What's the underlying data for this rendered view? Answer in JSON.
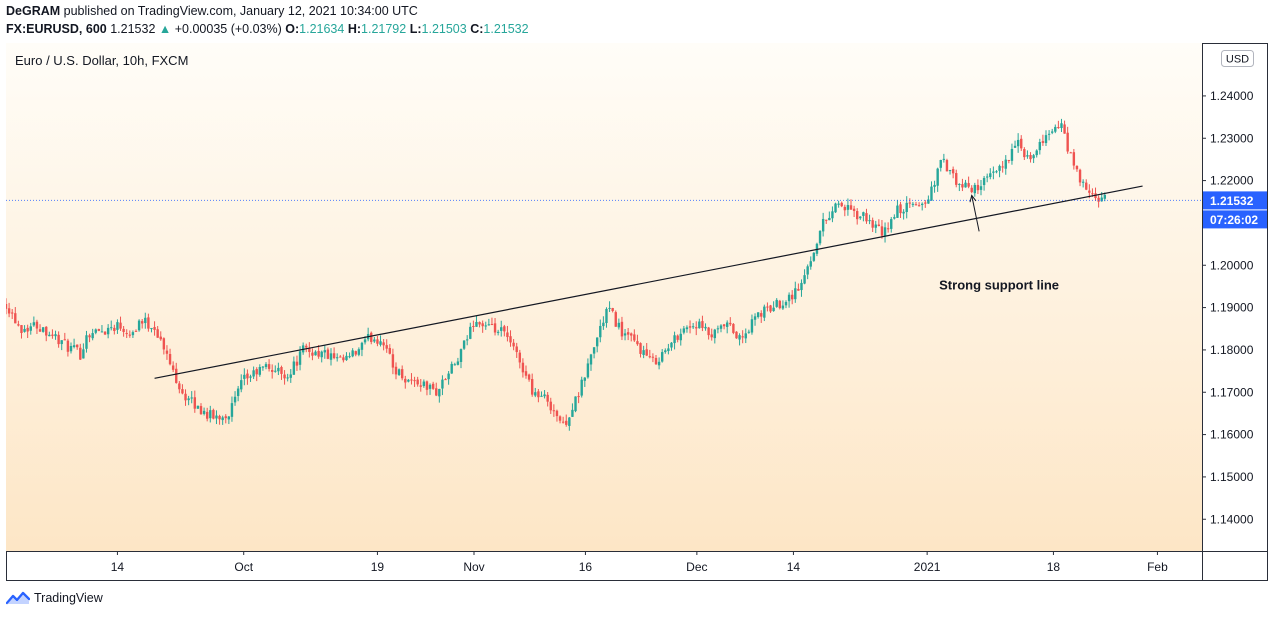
{
  "header": {
    "author": "DeGRAM",
    "published_text": "published on TradingView.com, January 12, 2021 10:34:00 UTC",
    "symbol": "FX:EURUSD, 600",
    "last": "1.21532",
    "change_arrow": "▲",
    "change": "+0.00035 (+0.03%)",
    "o_label": "O:",
    "o_value": "1.21634",
    "h_label": "H:",
    "h_value": "1.21792",
    "l_label": "L:",
    "l_value": "1.21503",
    "c_label": "C:",
    "c_value": "1.21532"
  },
  "footer": {
    "brand": "TradingView"
  },
  "colors": {
    "up": "#26a69a",
    "down": "#ef5350",
    "price_label_bg": "#2962ff",
    "bg_top": "#fffdf8",
    "bg_bottom": "#fde6c6"
  },
  "chart_data": {
    "type": "candlestick",
    "title": "Euro / U.S. Dollar, 10h, FXCM",
    "currency_label": "USD",
    "ylim": [
      1.1325,
      1.2525
    ],
    "y_ticks": [
      1.14,
      1.15,
      1.16,
      1.17,
      1.18,
      1.19,
      1.2,
      1.21,
      1.22,
      1.23,
      1.24
    ],
    "y_tick_labels": [
      "1.14000",
      "1.15000",
      "1.16000",
      "1.17000",
      "1.18000",
      "1.19000",
      "1.20000",
      "1.21000",
      "1.22000",
      "1.23000",
      "1.24000"
    ],
    "x_range": [
      "2020-08-30",
      "2021-02-07"
    ],
    "x_ticks": [
      {
        "date": "2020-09-14",
        "label": "14"
      },
      {
        "date": "2020-10-01",
        "label": "Oct"
      },
      {
        "date": "2020-10-19",
        "label": "19"
      },
      {
        "date": "2020-11-01",
        "label": "Nov"
      },
      {
        "date": "2020-11-16",
        "label": "16"
      },
      {
        "date": "2020-12-01",
        "label": "Dec"
      },
      {
        "date": "2020-12-14",
        "label": "14"
      },
      {
        "date": "2021-01-01",
        "label": "2021"
      },
      {
        "date": "2021-01-18",
        "label": "18"
      },
      {
        "date": "2021-02-01",
        "label": "Feb"
      }
    ],
    "last_price": 1.21532,
    "last_price_label": "1.21532",
    "countdown_label": "07:26:02",
    "close_path": [
      [
        "2020-08-30",
        1.191
      ],
      [
        "2020-09-01",
        1.185
      ],
      [
        "2020-09-03",
        1.186
      ],
      [
        "2020-09-05",
        1.184
      ],
      [
        "2020-09-07",
        1.181
      ],
      [
        "2020-09-09",
        1.179
      ],
      [
        "2020-09-10",
        1.184
      ],
      [
        "2020-09-12",
        1.1845
      ],
      [
        "2020-09-14",
        1.186
      ],
      [
        "2020-09-16",
        1.184
      ],
      [
        "2020-09-17",
        1.187
      ],
      [
        "2020-09-19",
        1.1855
      ],
      [
        "2020-09-21",
        1.177
      ],
      [
        "2020-09-23",
        1.169
      ],
      [
        "2020-09-25",
        1.166
      ],
      [
        "2020-09-27",
        1.164
      ],
      [
        "2020-09-29",
        1.165
      ],
      [
        "2020-10-01",
        1.173
      ],
      [
        "2020-10-04",
        1.176
      ],
      [
        "2020-10-07",
        1.174
      ],
      [
        "2020-10-09",
        1.18
      ],
      [
        "2020-10-12",
        1.179
      ],
      [
        "2020-10-14",
        1.177
      ],
      [
        "2020-10-16",
        1.179
      ],
      [
        "2020-10-18",
        1.183
      ],
      [
        "2020-10-20",
        1.182
      ],
      [
        "2020-10-21",
        1.176
      ],
      [
        "2020-10-23",
        1.173
      ],
      [
        "2020-10-25",
        1.172
      ],
      [
        "2020-10-27",
        1.17
      ],
      [
        "2020-10-28",
        1.173
      ],
      [
        "2020-10-30",
        1.178
      ],
      [
        "2020-11-01",
        1.187
      ],
      [
        "2020-11-03",
        1.185
      ],
      [
        "2020-11-05",
        1.184
      ],
      [
        "2020-11-07",
        1.178
      ],
      [
        "2020-11-09",
        1.17
      ],
      [
        "2020-11-11",
        1.168
      ],
      [
        "2020-11-13",
        1.162
      ],
      [
        "2020-11-15",
        1.169
      ],
      [
        "2020-11-17",
        1.18
      ],
      [
        "2020-11-19",
        1.19
      ],
      [
        "2020-11-21",
        1.184
      ],
      [
        "2020-11-23",
        1.181
      ],
      [
        "2020-11-25",
        1.177
      ],
      [
        "2020-11-27",
        1.18
      ],
      [
        "2020-11-29",
        1.185
      ],
      [
        "2020-12-01",
        1.186
      ],
      [
        "2020-12-03",
        1.183
      ],
      [
        "2020-12-05",
        1.186
      ],
      [
        "2020-12-07",
        1.182
      ],
      [
        "2020-12-09",
        1.188
      ],
      [
        "2020-12-11",
        1.19
      ],
      [
        "2020-12-13",
        1.192
      ],
      [
        "2020-12-15",
        1.195
      ],
      [
        "2020-12-16",
        1.2
      ],
      [
        "2020-12-18",
        1.21
      ],
      [
        "2020-12-20",
        1.215
      ],
      [
        "2020-12-22",
        1.212
      ],
      [
        "2020-12-24",
        1.211
      ],
      [
        "2020-12-26",
        1.207
      ],
      [
        "2020-12-28",
        1.213
      ],
      [
        "2020-12-30",
        1.214
      ],
      [
        "2021-01-01",
        1.215
      ],
      [
        "2021-01-03",
        1.225
      ],
      [
        "2021-01-05",
        1.219
      ],
      [
        "2021-01-07",
        1.218
      ],
      [
        "2021-01-09",
        1.22
      ],
      [
        "2021-01-11",
        1.223
      ],
      [
        "2021-01-13",
        1.229
      ],
      [
        "2021-01-15",
        1.224
      ],
      [
        "2021-01-17",
        1.231
      ],
      [
        "2021-01-19",
        1.233
      ],
      [
        "2021-01-21",
        1.222
      ],
      [
        "2021-01-23",
        1.216
      ],
      [
        "2021-01-25",
        1.2153
      ]
    ],
    "trendline": {
      "from": [
        "2020-09-19",
        1.1733
      ],
      "to": [
        "2021-01-30",
        1.2187
      ]
    },
    "annotation": {
      "text": "Strong support line",
      "arrow_from": [
        "2021-01-08",
        1.208
      ],
      "arrow_to": [
        "2021-01-07",
        1.2165
      ]
    },
    "legend": "none",
    "grid": false
  }
}
